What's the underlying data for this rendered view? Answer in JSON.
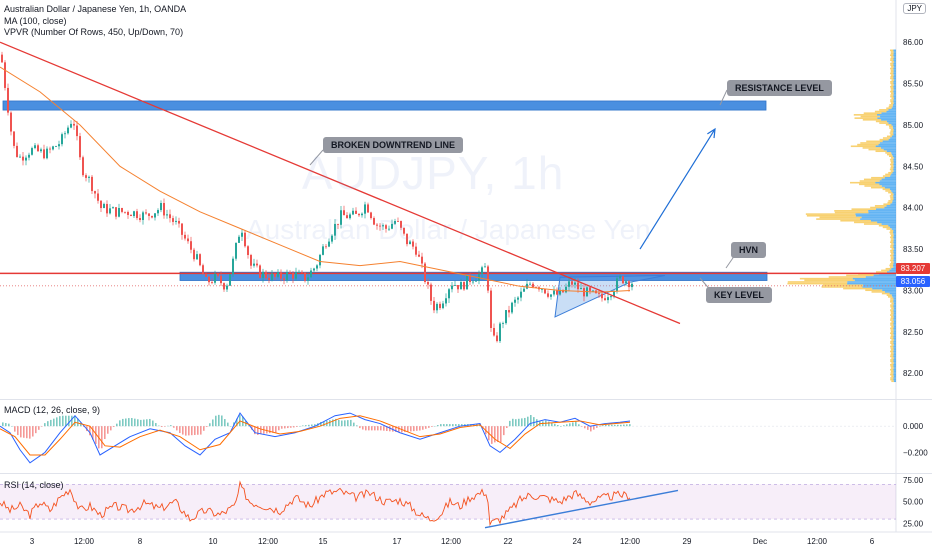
{
  "header": {
    "title": "Australian Dollar / Japanese Yen, 1h, OANDA",
    "ma": "MA (100, close)",
    "vpvr": "VPVR (Number Of Rows, 450, Up/Down, 70)",
    "currency_btn": "JPY"
  },
  "watermark": {
    "symbol": "AUDJPY, 1h",
    "name": "Australian Dollar / Japanese Yen"
  },
  "annotations": {
    "resistance": "RESISTANCE LEVEL",
    "downtrend": "BROKEN DOWNTREND LINE",
    "hvn": "HVN",
    "key_level": "KEY LEVEL"
  },
  "badges": {
    "last_price": "83.207",
    "second_price": "83.056"
  },
  "colors": {
    "up": "#26a69a",
    "down": "#ef5350",
    "zone": "#4a8fe0",
    "ma": "#f5812f",
    "trend": "#e53935",
    "arrow": "#1e6ed6",
    "vp_up": "#f5c242",
    "vp_down": "#2f9bef"
  },
  "chart_data": [
    {
      "type": "candlestick",
      "title": "Australian Dollar / Japanese Yen, 1h, OANDA",
      "x_ticks": [
        "3",
        "12:00",
        "8",
        "10",
        "12:00",
        "15",
        "17",
        "12:00",
        "22",
        "24",
        "12:00",
        "29",
        "Dec",
        "12:00",
        "6"
      ],
      "y_ticks": [
        86.0,
        85.5,
        85.0,
        84.5,
        84.0,
        83.5,
        83.0,
        82.5,
        82.0
      ],
      "ylim": [
        81.7,
        86.45
      ],
      "price_path": [
        [
          0,
          85.85
        ],
        [
          6,
          85.3
        ],
        [
          12,
          84.75
        ],
        [
          18,
          84.6
        ],
        [
          30,
          84.7
        ],
        [
          45,
          84.65
        ],
        [
          60,
          84.8
        ],
        [
          72,
          85.1
        ],
        [
          80,
          84.5
        ],
        [
          90,
          84.3
        ],
        [
          100,
          84.0
        ],
        [
          115,
          83.95
        ],
        [
          130,
          83.95
        ],
        [
          145,
          83.9
        ],
        [
          160,
          84.0
        ],
        [
          175,
          83.8
        ],
        [
          185,
          83.6
        ],
        [
          195,
          83.4
        ],
        [
          205,
          83.1
        ],
        [
          215,
          83.15
        ],
        [
          225,
          83.05
        ],
        [
          232,
          83.35
        ],
        [
          240,
          83.8
        ],
        [
          250,
          83.3
        ],
        [
          260,
          83.2
        ],
        [
          275,
          83.15
        ],
        [
          290,
          83.2
        ],
        [
          305,
          83.15
        ],
        [
          315,
          83.3
        ],
        [
          325,
          83.6
        ],
        [
          340,
          83.9
        ],
        [
          355,
          83.9
        ],
        [
          365,
          84.05
        ],
        [
          375,
          83.8
        ],
        [
          385,
          83.75
        ],
        [
          395,
          83.85
        ],
        [
          405,
          83.6
        ],
        [
          415,
          83.5
        ],
        [
          425,
          83.1
        ],
        [
          432,
          82.8
        ],
        [
          440,
          82.85
        ],
        [
          450,
          83.1
        ],
        [
          460,
          83.05
        ],
        [
          470,
          83.15
        ],
        [
          480,
          83.2
        ],
        [
          486,
          83.3
        ],
        [
          489,
          82.55
        ],
        [
          494,
          82.35
        ],
        [
          500,
          82.6
        ],
        [
          510,
          82.8
        ],
        [
          520,
          82.95
        ],
        [
          530,
          83.1
        ],
        [
          540,
          83.05
        ],
        [
          550,
          82.95
        ],
        [
          560,
          82.95
        ],
        [
          570,
          83.1
        ],
        [
          580,
          83.0
        ],
        [
          590,
          82.95
        ],
        [
          600,
          82.9
        ],
        [
          610,
          83.0
        ],
        [
          620,
          83.15
        ],
        [
          630,
          83.1
        ]
      ],
      "ma_path": [
        [
          0,
          85.7
        ],
        [
          40,
          85.4
        ],
        [
          80,
          85.0
        ],
        [
          120,
          84.5
        ],
        [
          160,
          84.2
        ],
        [
          200,
          83.95
        ],
        [
          240,
          83.75
        ],
        [
          280,
          83.55
        ],
        [
          320,
          83.35
        ],
        [
          360,
          83.3
        ],
        [
          400,
          83.35
        ],
        [
          440,
          83.25
        ],
        [
          480,
          83.15
        ],
        [
          520,
          83.05
        ],
        [
          560,
          83.0
        ],
        [
          600,
          82.98
        ],
        [
          630,
          83.0
        ]
      ],
      "resistance_zone": [
        85.18,
        85.29
      ],
      "key_zone": [
        83.12,
        83.22
      ],
      "key_line": 83.207,
      "dotted_line": 83.056,
      "downtrend_line": [
        [
          0,
          86.0
        ],
        [
          680,
          82.6
        ]
      ],
      "triangle": [
        [
          555,
          82.68
        ],
        [
          630,
          83.1
        ],
        [
          665,
          83.18
        ],
        [
          560,
          83.16
        ]
      ],
      "projection_arrow": [
        [
          640,
          83.5
        ],
        [
          715,
          84.95
        ]
      ],
      "volume_profile_peaks": [
        83.1,
        83.9,
        84.3,
        84.75,
        85.1
      ]
    },
    {
      "type": "line",
      "title": "MACD (12, 26, close, 9)",
      "y_ticks": [
        0.0,
        -0.2
      ],
      "ylim": [
        -0.35,
        0.2
      ],
      "macd_path": [
        [
          0,
          0.0
        ],
        [
          10,
          -0.05
        ],
        [
          20,
          -0.18
        ],
        [
          30,
          -0.28
        ],
        [
          45,
          -0.2
        ],
        [
          60,
          -0.05
        ],
        [
          75,
          0.08
        ],
        [
          90,
          -0.05
        ],
        [
          100,
          -0.22
        ],
        [
          115,
          -0.15
        ],
        [
          130,
          -0.08
        ],
        [
          150,
          -0.02
        ],
        [
          170,
          -0.05
        ],
        [
          185,
          -0.15
        ],
        [
          200,
          -0.22
        ],
        [
          215,
          -0.1
        ],
        [
          230,
          -0.05
        ],
        [
          240,
          0.1
        ],
        [
          255,
          -0.05
        ],
        [
          275,
          -0.08
        ],
        [
          295,
          -0.05
        ],
        [
          315,
          0.0
        ],
        [
          335,
          0.08
        ],
        [
          350,
          0.1
        ],
        [
          365,
          0.05
        ],
        [
          380,
          0.02
        ],
        [
          400,
          -0.05
        ],
        [
          420,
          -0.1
        ],
        [
          440,
          -0.05
        ],
        [
          460,
          0.0
        ],
        [
          480,
          0.02
        ],
        [
          490,
          -0.15
        ],
        [
          500,
          -0.2
        ],
        [
          515,
          -0.1
        ],
        [
          530,
          0.02
        ],
        [
          545,
          0.05
        ],
        [
          560,
          0.03
        ],
        [
          575,
          0.06
        ],
        [
          590,
          0.0
        ],
        [
          605,
          0.02
        ],
        [
          620,
          0.03
        ],
        [
          630,
          0.04
        ]
      ],
      "signal_path": [
        [
          0,
          -0.02
        ],
        [
          15,
          -0.08
        ],
        [
          30,
          -0.22
        ],
        [
          45,
          -0.22
        ],
        [
          60,
          -0.1
        ],
        [
          75,
          0.03
        ],
        [
          90,
          0.0
        ],
        [
          105,
          -0.15
        ],
        [
          120,
          -0.16
        ],
        [
          140,
          -0.08
        ],
        [
          160,
          -0.03
        ],
        [
          180,
          -0.08
        ],
        [
          200,
          -0.18
        ],
        [
          220,
          -0.14
        ],
        [
          240,
          0.04
        ],
        [
          260,
          -0.02
        ],
        [
          280,
          -0.06
        ],
        [
          300,
          -0.04
        ],
        [
          320,
          0.0
        ],
        [
          340,
          0.06
        ],
        [
          360,
          0.08
        ],
        [
          380,
          0.04
        ],
        [
          400,
          -0.02
        ],
        [
          420,
          -0.08
        ],
        [
          440,
          -0.06
        ],
        [
          460,
          -0.01
        ],
        [
          480,
          0.01
        ],
        [
          495,
          -0.1
        ],
        [
          510,
          -0.17
        ],
        [
          525,
          -0.06
        ],
        [
          540,
          0.02
        ],
        [
          560,
          0.03
        ],
        [
          580,
          0.04
        ],
        [
          600,
          0.01
        ],
        [
          630,
          0.03
        ]
      ]
    },
    {
      "type": "line",
      "title": "RSI (14, close)",
      "y_ticks": [
        75.0,
        50.0,
        25.0
      ],
      "ylim": [
        15,
        82
      ],
      "band": [
        30,
        70
      ],
      "rsi_path": [
        [
          0,
          50
        ],
        [
          10,
          40
        ],
        [
          20,
          45
        ],
        [
          30,
          35
        ],
        [
          40,
          50
        ],
        [
          50,
          40
        ],
        [
          60,
          55
        ],
        [
          70,
          65
        ],
        [
          80,
          40
        ],
        [
          90,
          45
        ],
        [
          100,
          35
        ],
        [
          115,
          45
        ],
        [
          130,
          40
        ],
        [
          145,
          48
        ],
        [
          160,
          42
        ],
        [
          175,
          50
        ],
        [
          190,
          30
        ],
        [
          205,
          40
        ],
        [
          220,
          35
        ],
        [
          235,
          45
        ],
        [
          240,
          68
        ],
        [
          250,
          50
        ],
        [
          265,
          45
        ],
        [
          280,
          40
        ],
        [
          295,
          55
        ],
        [
          310,
          45
        ],
        [
          325,
          60
        ],
        [
          340,
          62
        ],
        [
          355,
          55
        ],
        [
          370,
          60
        ],
        [
          385,
          50
        ],
        [
          400,
          52
        ],
        [
          410,
          45
        ],
        [
          420,
          35
        ],
        [
          430,
          30
        ],
        [
          440,
          35
        ],
        [
          450,
          50
        ],
        [
          460,
          45
        ],
        [
          470,
          55
        ],
        [
          480,
          60
        ],
        [
          487,
          62
        ],
        [
          490,
          25
        ],
        [
          500,
          30
        ],
        [
          510,
          40
        ],
        [
          520,
          52
        ],
        [
          530,
          58
        ],
        [
          545,
          55
        ],
        [
          560,
          50
        ],
        [
          575,
          60
        ],
        [
          590,
          50
        ],
        [
          605,
          55
        ],
        [
          620,
          58
        ],
        [
          630,
          57
        ]
      ],
      "trend_line": [
        [
          485,
          20
        ],
        [
          678,
          63
        ]
      ]
    }
  ]
}
